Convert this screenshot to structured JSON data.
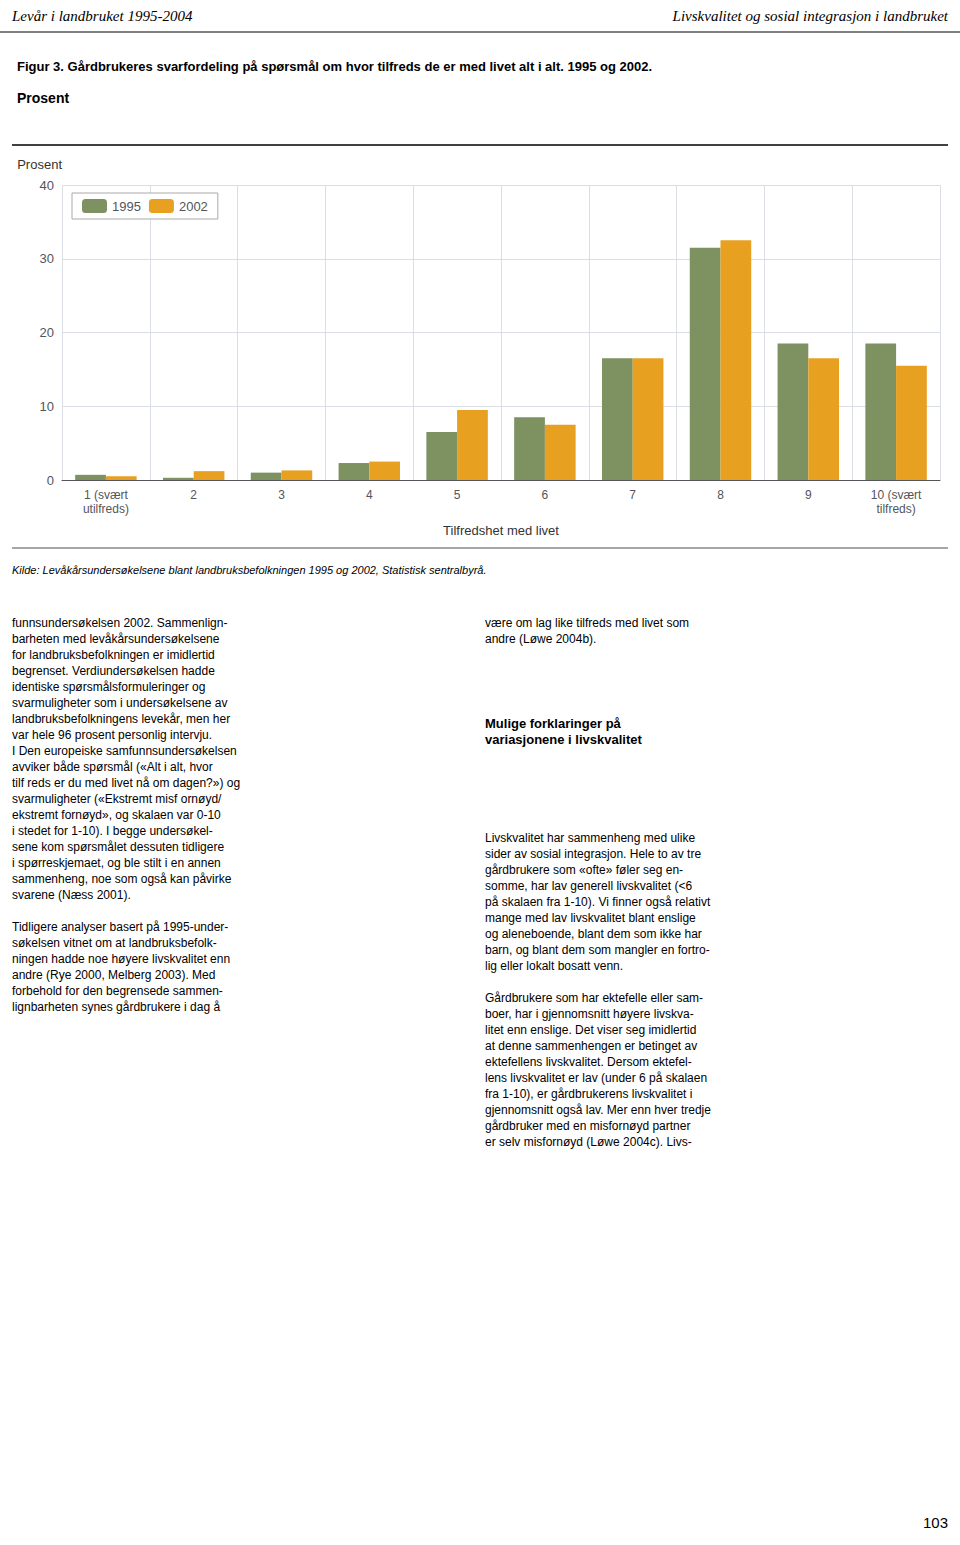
{
  "chart_data": {
    "type": "bar",
    "title": "Figur 3. Gårdbrukeres svarfordeling på spørsmål om hvor tilfreds de er med livet alt i alt. 1995 og 2002.",
    "subtitle": "Prosent",
    "xlabel": "Tilfredshet med livet",
    "ylabel": "Prosent",
    "categories": [
      "1 (svært\nutilfreds)",
      "2",
      "3",
      "4",
      "5",
      "6",
      "7",
      "8",
      "9",
      "10 (svært\ntilfreds)"
    ],
    "series": [
      {
        "name": "1995",
        "color": "#7d9161",
        "values": [
          0.7,
          0.3,
          1.0,
          2.3,
          6.5,
          8.5,
          16.5,
          31.5,
          18.5,
          18.5
        ]
      },
      {
        "name": "2002",
        "color": "#e8a020",
        "values": [
          0.5,
          1.2,
          1.3,
          2.5,
          9.5,
          7.5,
          16.5,
          32.5,
          16.5,
          15.5
        ]
      }
    ],
    "ylim": [
      0,
      40
    ],
    "yticks": [
      0,
      10,
      20,
      30,
      40
    ],
    "grid": true,
    "legend": "upper left",
    "annotations": [
      "Levår i landbruket 1995-2004",
      "Livskvalitet og sosial integrasjon i landbruket",
      "Kilde: Levåkårsundersøkelsene blant landbruksbefolkningen 1995 og 2002, Statistisk sentralbyrå.",
      "funnsundersøkelsen 2002. Sammenlign-\nbarheten med levåkårsundersøkelsene\nfor landbruksbefolkningen er imidlertid\nbegrenset. Verdiundersøkelsen hadde\nidentiske spørsmålsformuleringer og\nsvarmuligheter som i undersøkelsene av\nlandbruksbefolkningens levekår, men her\nvar hele 96 prosent personlig intervju.\nI Den europeiske samfunnsundersøkelsen\navviker både spørsmål («Alt i alt, hvor\ntilf reds er du med livet nå om dagen?») og\nsvarmuligheter («Ekstremt misf ornøyd/\nekstremt fornøyd», og skalaen var 0-10\ni stedet for 1-10). I begge undersøkel-\nsene kom spørsmålet dessuten tidligere\ni spørreskjemaet, og ble stilt i en annen\nsammenheng, noe som også kan påvirke\nsvarene (Næss 2001).\n\nTidligere analyser basert på 1995-under-\nsøkelsen vitnet om at landbruksbefolk-\nningen hadde noe høyere livskvalitet enn\nandre (Rye 2000, Melberg 2003). Med\nforbehold for den begrensede sammen-\nlignbarheten synes gårdbrukere i dag å",
      "være om lag like tilfreds med livet som\nandre (Løwe 2004b).",
      "Mulige forklaringer på\nvariasjonene i livskvalitet",
      "Livskvalitet har sammenheng med ulike\nsider av sosial integrasjon. Hele to av tre\ngårdbrukere som «ofte» føler seg en-\nsomme, har lav generell livskvalitet (<6\npå skalaen fra 1-10). Vi finner også relativt\nmange med lav livskvalitet blant enslige\nog aleneboende, blant dem som ikke har\nbarn, og blant dem som mangler en fortro-\nlig eller lokalt bosatt venn.\n\nGårdbrukere som har ektefelle eller sam-\nboer, har i gjennomsnitt høyere livskva-\nlitet enn enslige. Det viser seg imidlertid\nat denne sammenhengen er betinget av\nektefellens livskvalitet. Dersom ektefel-\nlens livskvalitet er lav (under 6 på skalaen\nfra 1-10), er gårdbrukerens livskvalitet i\ngjennomsnitt også lav. Mer enn hver tredje\ngårdbruker med en misfornøyd partner\ner selv misfornøyd (Løwe 2004c). Livs-",
      "103"
    ]
  }
}
